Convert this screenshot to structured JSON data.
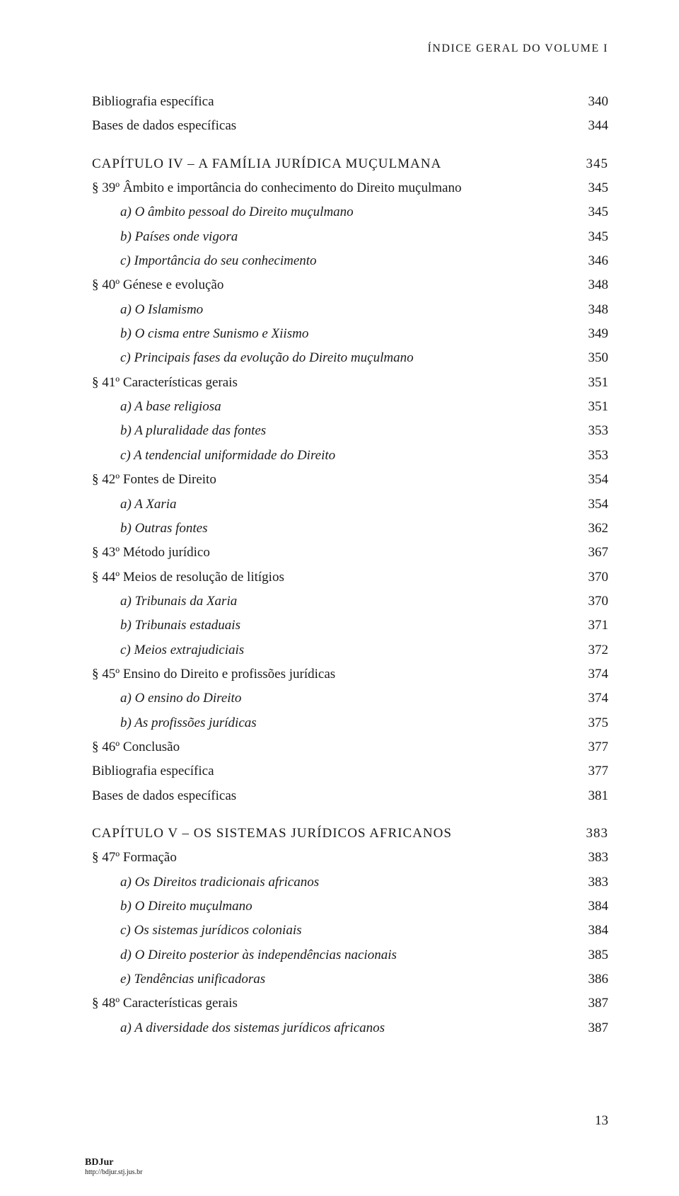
{
  "header": "ÍNDICE GERAL DO VOLUME I",
  "entries": [
    {
      "label": "Bibliografia específica",
      "page": "340",
      "indent": 0
    },
    {
      "label": "Bases de dados específicas",
      "page": "344",
      "indent": 0
    },
    {
      "label": "CAPÍTULO IV – A FAMÍLIA JURÍDICA MUÇULMANA",
      "page": "345",
      "indent": 0,
      "chapter": true
    },
    {
      "label": "§ 39º Âmbito e importância do conhecimento do Direito muçulmano",
      "page": "345",
      "indent": 0
    },
    {
      "label": "a) O âmbito pessoal do Direito muçulmano",
      "page": "345",
      "indent": 1,
      "italic": true
    },
    {
      "label": "b) Países onde vigora",
      "page": "345",
      "indent": 1,
      "italic": true
    },
    {
      "label": "c) Importância do seu conhecimento",
      "page": "346",
      "indent": 1,
      "italic": true
    },
    {
      "label": "§ 40º Génese e evolução",
      "page": "348",
      "indent": 0
    },
    {
      "label": "a) O Islamismo",
      "page": "348",
      "indent": 1,
      "italic": true
    },
    {
      "label": "b) O cisma entre Sunismo e Xiismo",
      "page": "349",
      "indent": 1,
      "italic": true
    },
    {
      "label": "c) Principais fases da evolução do Direito muçulmano",
      "page": "350",
      "indent": 1,
      "italic": true
    },
    {
      "label": "§ 41º Características gerais",
      "page": "351",
      "indent": 0
    },
    {
      "label": "a) A base religiosa",
      "page": "351",
      "indent": 1,
      "italic": true
    },
    {
      "label": "b) A pluralidade das fontes",
      "page": "353",
      "indent": 1,
      "italic": true
    },
    {
      "label": "c) A tendencial uniformidade do Direito",
      "page": "353",
      "indent": 1,
      "italic": true
    },
    {
      "label": "§ 42º Fontes de Direito",
      "page": "354",
      "indent": 0
    },
    {
      "label": "a) A Xaria",
      "page": "354",
      "indent": 1,
      "italic": true
    },
    {
      "label": "b) Outras fontes",
      "page": "362",
      "indent": 1,
      "italic": true
    },
    {
      "label": "§ 43º Método jurídico",
      "page": "367",
      "indent": 0
    },
    {
      "label": "§ 44º Meios de resolução de litígios",
      "page": "370",
      "indent": 0
    },
    {
      "label": "a) Tribunais da Xaria",
      "page": "370",
      "indent": 1,
      "italic": true
    },
    {
      "label": "b) Tribunais estaduais",
      "page": "371",
      "indent": 1,
      "italic": true
    },
    {
      "label": "c) Meios extrajudiciais",
      "page": "372",
      "indent": 1,
      "italic": true
    },
    {
      "label": "§ 45º Ensino do Direito e profissões jurídicas",
      "page": "374",
      "indent": 0
    },
    {
      "label": "a) O ensino do Direito",
      "page": "374",
      "indent": 1,
      "italic": true
    },
    {
      "label": "b) As profissões jurídicas",
      "page": "375",
      "indent": 1,
      "italic": true
    },
    {
      "label": "§ 46º Conclusão",
      "page": "377",
      "indent": 0
    },
    {
      "label": "Bibliografia específica",
      "page": "377",
      "indent": 0
    },
    {
      "label": "Bases de dados específicas",
      "page": "381",
      "indent": 0
    },
    {
      "label": "CAPÍTULO V – OS SISTEMAS JURÍDICOS AFRICANOS",
      "page": "383",
      "indent": 0,
      "chapter": true
    },
    {
      "label": "§ 47º Formação",
      "page": "383",
      "indent": 0
    },
    {
      "label": "a) Os Direitos tradicionais africanos",
      "page": "383",
      "indent": 1,
      "italic": true
    },
    {
      "label": "b) O Direito muçulmano",
      "page": "384",
      "indent": 1,
      "italic": true
    },
    {
      "label": "c) Os sistemas jurídicos coloniais",
      "page": "384",
      "indent": 1,
      "italic": true
    },
    {
      "label": "d) O Direito posterior às independências nacionais",
      "page": "385",
      "indent": 1,
      "italic": true
    },
    {
      "label": "e) Tendências unificadoras",
      "page": "386",
      "indent": 1,
      "italic": true
    },
    {
      "label": "§ 48º Características gerais",
      "page": "387",
      "indent": 0
    },
    {
      "label": "a) A diversidade dos sistemas jurídicos africanos",
      "page": "387",
      "indent": 1,
      "italic": true
    }
  ],
  "pageNumber": "13",
  "footer": {
    "name": "BDJur",
    "url": "http://bdjur.stj.jus.br"
  }
}
